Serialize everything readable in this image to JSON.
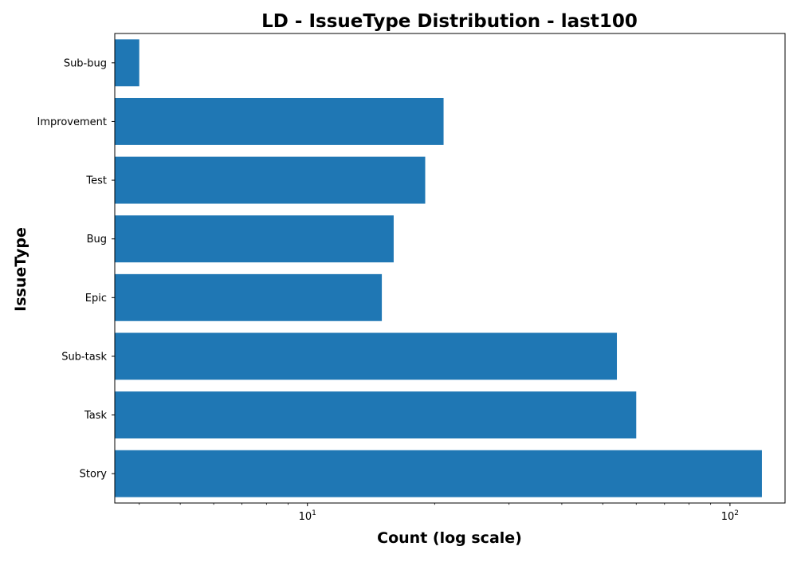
{
  "chart_data": {
    "type": "bar",
    "orientation": "horizontal",
    "title": "LD - IssueType Distribution - last100",
    "xlabel": "Count (log scale)",
    "ylabel": "IssueType",
    "x_scale": "log",
    "xlim": [
      3.5,
      135
    ],
    "categories": [
      "Story",
      "Task",
      "Sub-task",
      "Epic",
      "Bug",
      "Test",
      "Improvement",
      "Sub-bug"
    ],
    "values": [
      119,
      60,
      54,
      15,
      16,
      19,
      21,
      4
    ],
    "bar_color": "#1f77b4",
    "x_ticks": [
      {
        "base": "10",
        "exp": "1",
        "value": 10
      },
      {
        "base": "10",
        "exp": "2",
        "value": 100
      }
    ],
    "grid": false,
    "legend": "none"
  }
}
